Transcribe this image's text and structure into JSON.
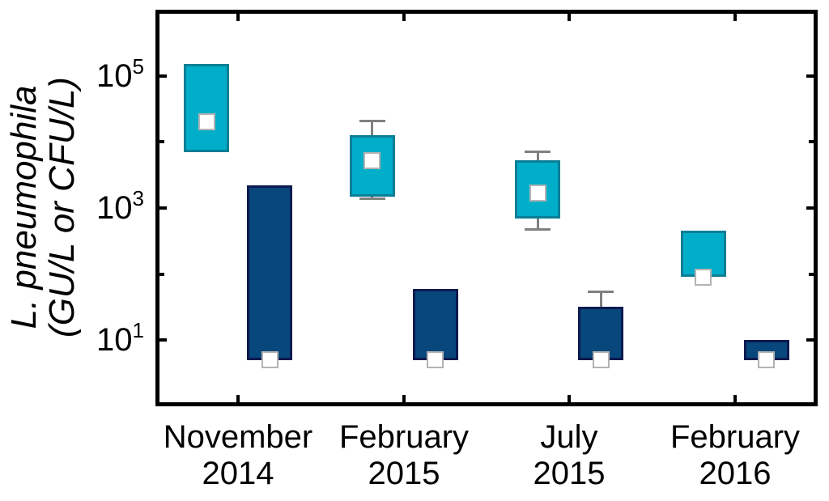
{
  "chart_data": {
    "type": "boxplot",
    "title": "",
    "xlabel": "",
    "ylabel_line1": "L. pneumophila",
    "ylabel_line2": "(GU/L or CFU/L)",
    "y_scale": "log10",
    "y_min": 1,
    "y_max": 1000000,
    "y_tick_labels": [
      {
        "base": "10",
        "exp": "5"
      },
      {
        "base": "10",
        "exp": "3"
      },
      {
        "base": "10",
        "exp": "1"
      }
    ],
    "y_labeled_tick_values": [
      100000,
      1000,
      10
    ],
    "y_minor_tick_values": [
      10000,
      100
    ],
    "grid": false,
    "legend": "none",
    "categories": [
      "November 2014",
      "February 2015",
      "July 2015",
      "February 2016"
    ],
    "x_tick_labels": [
      {
        "line1": "November",
        "line2": "2014"
      },
      {
        "line1": "February",
        "line2": "2015"
      },
      {
        "line1": "July",
        "line2": "2015"
      },
      {
        "line1": "February",
        "line2": "2016"
      }
    ],
    "series": [
      {
        "id": "cyan-box",
        "fill": "#00AEC9",
        "stroke": "#0B7E96",
        "boxes": [
          {
            "q1": 7000,
            "median": 20000,
            "q3": 150000
          },
          {
            "q1": 1500,
            "median": 5200,
            "q3": 12500,
            "whisker_low": 1400,
            "whisker_high": 21000
          },
          {
            "q1": 700,
            "median": 1700,
            "q3": 5300,
            "whisker_low": 470,
            "whisker_high": 7000
          },
          {
            "q1": 90,
            "median": 90,
            "q3": 460
          }
        ]
      },
      {
        "id": "navy-box",
        "fill": "#07477C",
        "stroke": "#0D1A4F",
        "boxes": [
          {
            "q1": 5,
            "median": 5,
            "q3": 2200
          },
          {
            "q1": 5,
            "median": 5,
            "q3": 60
          },
          {
            "q1": 5,
            "median": 5,
            "q3": 32,
            "whisker_high": 54
          },
          {
            "q1": 5,
            "median": 5,
            "q3": 10
          }
        ]
      }
    ],
    "marker": {
      "shape": "square",
      "fill": "#FFFFFF",
      "stroke": "#B3B3B3"
    },
    "whisker_color": "#808080",
    "axis_color": "#000000",
    "background_color": "#FFFFFF"
  }
}
